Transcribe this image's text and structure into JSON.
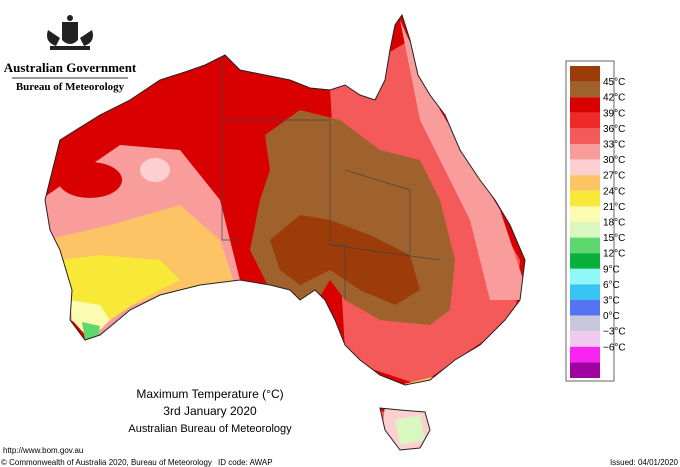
{
  "header": {
    "government": "Australian Government",
    "agency": "Bureau of Meteorology"
  },
  "map": {
    "title": "Maximum Temperature (°C)",
    "date": "3rd January 2020",
    "source": "Australian Bureau of Meteorology"
  },
  "legend": {
    "labels": [
      "45°C",
      "42°C",
      "39°C",
      "36°C",
      "33°C",
      "30°C",
      "27°C",
      "24°C",
      "21°C",
      "18°C",
      "15°C",
      "12°C",
      "9°C",
      "6°C",
      "3°C",
      "0°C",
      "−3°C",
      "−6°C"
    ],
    "colors": [
      "#9c3c08",
      "#a0622c",
      "#d80000",
      "#f02828",
      "#f45a5a",
      "#f89c9c",
      "#fcd0d0",
      "#fcc464",
      "#f8e838",
      "#fcfcb0",
      "#d8f8c0",
      "#5cd86c",
      "#08b03c",
      "#90f8f8",
      "#38c4f4",
      "#5474f4",
      "#c8c8dc",
      "#f0c8f0",
      "#f824f0",
      "#a000a0"
    ]
  },
  "footer": {
    "url": "http://www.bom.gov.au",
    "copyright": "© Commonwealth of Australia 2020, Bureau of Meteorology",
    "id_code": "ID code: AWAP",
    "issued": "Issued: 04/01/2020"
  }
}
